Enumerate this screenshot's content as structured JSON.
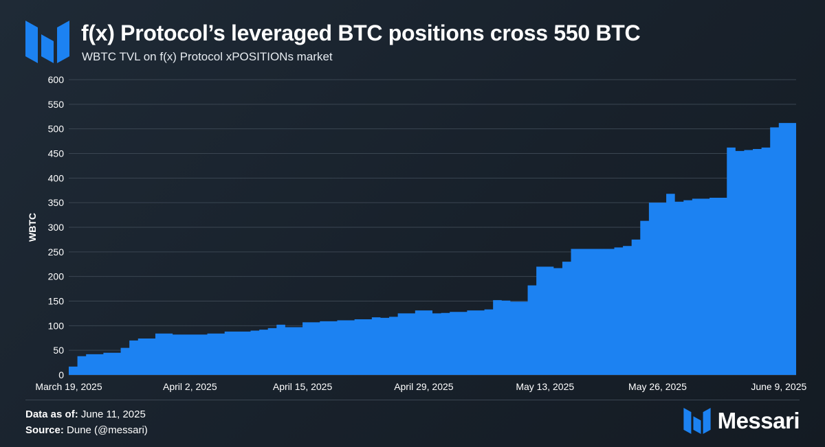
{
  "header": {
    "title": "f(x) Protocol’s leveraged BTC positions cross 550 BTC",
    "subtitle": "WBTC TVL on f(x) Protocol xPOSITIONs market"
  },
  "footer": {
    "data_as_of_label": "Data as of:",
    "data_as_of_value": "June 11, 2025",
    "source_label": "Source:",
    "source_value": "Dune (@messari)",
    "brand_name": "Messari",
    "brand_icon": "messari-logo-icon"
  },
  "colors": {
    "area": "#1c82f2",
    "grid": "#3b4652",
    "logo": "#1c82f2"
  },
  "chart_data": {
    "type": "area",
    "title": "f(x) Protocol’s leveraged BTC positions cross 550 BTC",
    "ylabel": "WBTC",
    "xlabel": "",
    "ylim": [
      0,
      600
    ],
    "yticks": [
      0,
      50,
      100,
      150,
      200,
      250,
      300,
      350,
      400,
      450,
      500,
      550,
      600
    ],
    "x_start": "2025-03-19",
    "x_end": "2025-06-11",
    "xticks": [
      {
        "date": "2025-03-19",
        "label": "March 19, 2025"
      },
      {
        "date": "2025-04-02",
        "label": "April 2, 2025"
      },
      {
        "date": "2025-04-15",
        "label": "April 15, 2025"
      },
      {
        "date": "2025-04-29",
        "label": "April 29, 2025"
      },
      {
        "date": "2025-05-13",
        "label": "May 13, 2025"
      },
      {
        "date": "2025-05-26",
        "label": "May 26, 2025"
      },
      {
        "date": "2025-06-09",
        "label": "June 9, 2025"
      }
    ],
    "grid": true,
    "legend": "none",
    "series": [
      {
        "x": [
          "2025-03-19",
          "2025-03-20",
          "2025-03-21",
          "2025-03-23",
          "2025-03-25",
          "2025-03-26",
          "2025-03-27",
          "2025-03-29",
          "2025-03-31",
          "2025-04-02",
          "2025-04-04",
          "2025-04-06",
          "2025-04-09",
          "2025-04-10",
          "2025-04-11",
          "2025-04-12",
          "2025-04-13",
          "2025-04-15",
          "2025-04-17",
          "2025-04-19",
          "2025-04-21",
          "2025-04-23",
          "2025-04-24",
          "2025-04-25",
          "2025-04-26",
          "2025-04-28",
          "2025-04-30",
          "2025-05-01",
          "2025-05-02",
          "2025-05-04",
          "2025-05-06",
          "2025-05-07",
          "2025-05-08",
          "2025-05-09",
          "2025-05-11",
          "2025-05-12",
          "2025-05-14",
          "2025-05-15",
          "2025-05-16",
          "2025-05-18",
          "2025-05-21",
          "2025-05-22",
          "2025-05-23",
          "2025-05-24",
          "2025-05-25",
          "2025-05-27",
          "2025-05-28",
          "2025-05-29",
          "2025-05-30",
          "2025-06-01",
          "2025-06-03",
          "2025-06-04",
          "2025-06-05",
          "2025-06-06",
          "2025-06-07",
          "2025-06-08",
          "2025-06-09",
          "2025-06-11"
        ],
        "values": [
          17,
          38,
          42,
          45,
          55,
          70,
          74,
          84,
          82,
          82,
          84,
          88,
          90,
          92,
          95,
          102,
          97,
          107,
          109,
          111,
          113,
          117,
          116,
          118,
          125,
          131,
          125,
          126,
          128,
          131,
          133,
          152,
          151,
          149,
          182,
          220,
          217,
          230,
          256,
          256,
          259,
          262,
          275,
          313,
          350,
          368,
          352,
          355,
          358,
          360,
          462,
          455,
          457,
          459,
          462,
          503,
          512,
          555
        ]
      }
    ]
  }
}
